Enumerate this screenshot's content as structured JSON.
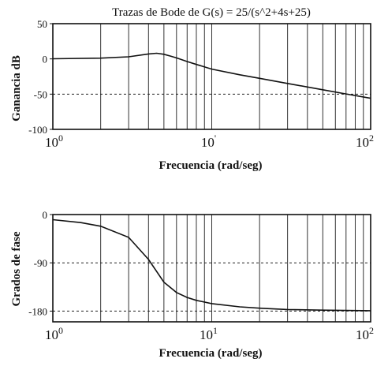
{
  "figure_title": "Trazas de Bode de G(s) = 25/(s^2+4s+25)",
  "chart_data": [
    {
      "type": "line",
      "title": "Trazas de Bode de G(s) = 25/(s^2+4s+25)",
      "xlabel": "Frecuencia (rad/seg)",
      "ylabel": "Ganancia dB",
      "xscale": "log",
      "xlim": [
        1,
        100
      ],
      "ylim": [
        -100,
        50
      ],
      "yticks": [
        "50",
        "0",
        "-50",
        "-100"
      ],
      "xticks": [
        {
          "base": "10",
          "exp": "0"
        },
        {
          "base": "10",
          "exp": "'"
        },
        {
          "base": "10",
          "exp": "2"
        }
      ],
      "grid": "vertical log grid, dashed line at -50",
      "series": [
        {
          "x": [
            1,
            2,
            3,
            4,
            4.5,
            5,
            5.5,
            6,
            7,
            8,
            10,
            15,
            20,
            30,
            50,
            70,
            100
          ],
          "y": [
            0.2,
            1.1,
            3.0,
            7.0,
            8.0,
            6.6,
            4.0,
            1.4,
            -3.7,
            -7.9,
            -14.5,
            -22.5,
            -27.6,
            -34.9,
            -43.8,
            -49.7,
            -55.9
          ]
        }
      ]
    },
    {
      "type": "line",
      "xlabel": "Frecuencia (rad/seg)",
      "ylabel": "Grados de fase",
      "xscale": "log",
      "xlim": [
        1,
        100
      ],
      "ylim": [
        -200,
        0
      ],
      "yticks": [
        "0",
        "-90",
        "-180"
      ],
      "xticks": [
        {
          "base": "10",
          "exp": "0"
        },
        {
          "base": "10",
          "exp": "1"
        },
        {
          "base": "10",
          "exp": "2"
        }
      ],
      "grid": "vertical log grid, dashed lines at -90 and -180",
      "series": [
        {
          "x": [
            1,
            1.5,
            2,
            3,
            4,
            5,
            6,
            7,
            8,
            10,
            15,
            20,
            30,
            50,
            70,
            100
          ],
          "y": [
            -9.5,
            -15.0,
            -21.8,
            -42.5,
            -83.7,
            -126.0,
            -145.3,
            -154.6,
            -160.0,
            -166.0,
            -172.0,
            -174.5,
            -177.0,
            -178.3,
            -178.8,
            -179.2
          ]
        }
      ]
    }
  ]
}
